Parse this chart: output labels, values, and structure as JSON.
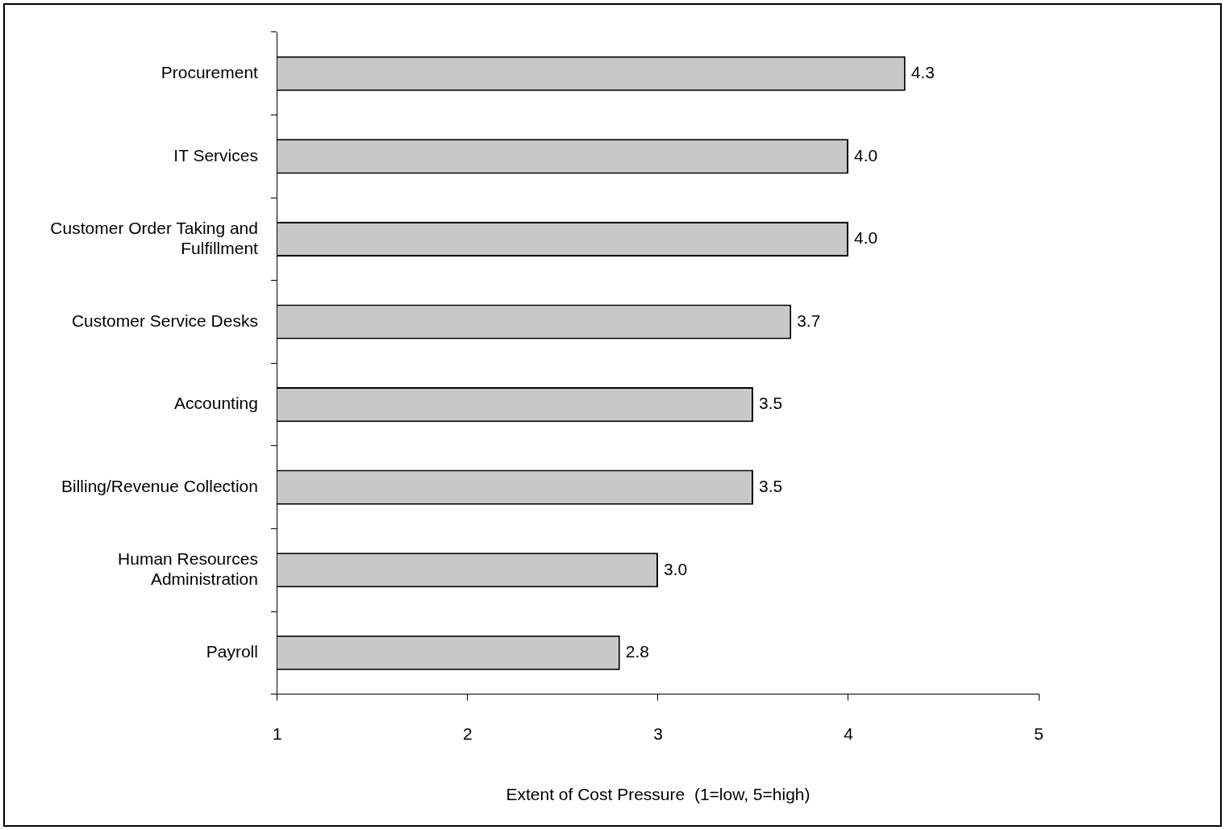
{
  "chart_data": {
    "type": "bar",
    "orientation": "horizontal",
    "xlabel": "Extent of Cost Pressure  (1=low, 5=high)",
    "categories": [
      "Procurement",
      "IT Services",
      "Customer Order Taking and Fulfillment",
      "Customer Service Desks",
      "Accounting",
      "Billing/Revenue Collection",
      "Human Resources Administration",
      "Payroll"
    ],
    "values": [
      4.3,
      4.0,
      4.0,
      3.7,
      3.5,
      3.5,
      3.0,
      2.8
    ],
    "value_labels": [
      "4.3",
      "4.0",
      "4.0",
      "3.7",
      "3.5",
      "3.5",
      "3.0",
      "2.8"
    ],
    "color": "#c8c8c8",
    "xlim": [
      1,
      5
    ],
    "xticks": [
      1,
      2,
      3,
      4,
      5
    ],
    "grid": false,
    "legend": false
  }
}
